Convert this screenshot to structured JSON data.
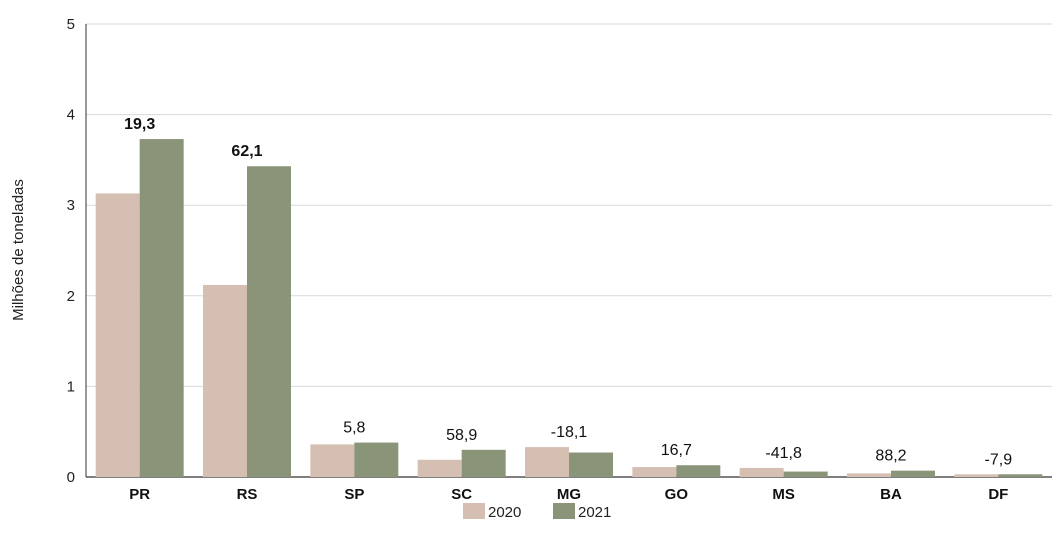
{
  "chart_data": {
    "type": "bar",
    "title": "",
    "xlabel": "",
    "ylabel": "Milhões de toneladas",
    "ylim": [
      0,
      5
    ],
    "yticks": [
      "0",
      "1",
      "2",
      "3",
      "4",
      "5"
    ],
    "grid": true,
    "legend_position": "bottom-center",
    "categories": [
      "PR",
      "RS",
      "SP",
      "SC",
      "MG",
      "GO",
      "MS",
      "BA",
      "DF"
    ],
    "series": [
      {
        "name": "2020",
        "color": "#d5bfb2",
        "values": [
          3.13,
          2.12,
          0.36,
          0.19,
          0.33,
          0.11,
          0.1,
          0.04,
          0.03
        ]
      },
      {
        "name": "2021",
        "color": "#8a9479",
        "values": [
          3.73,
          3.43,
          0.38,
          0.3,
          0.27,
          0.13,
          0.06,
          0.07,
          0.03
        ]
      }
    ],
    "data_labels": [
      "19,3",
      "62,1",
      "5,8",
      "58,9",
      "-18,1",
      "16,7",
      "-41,8",
      "88,2",
      "-7,9"
    ],
    "data_labels_bold": [
      true,
      true,
      false,
      false,
      false,
      false,
      false,
      false,
      false
    ]
  }
}
